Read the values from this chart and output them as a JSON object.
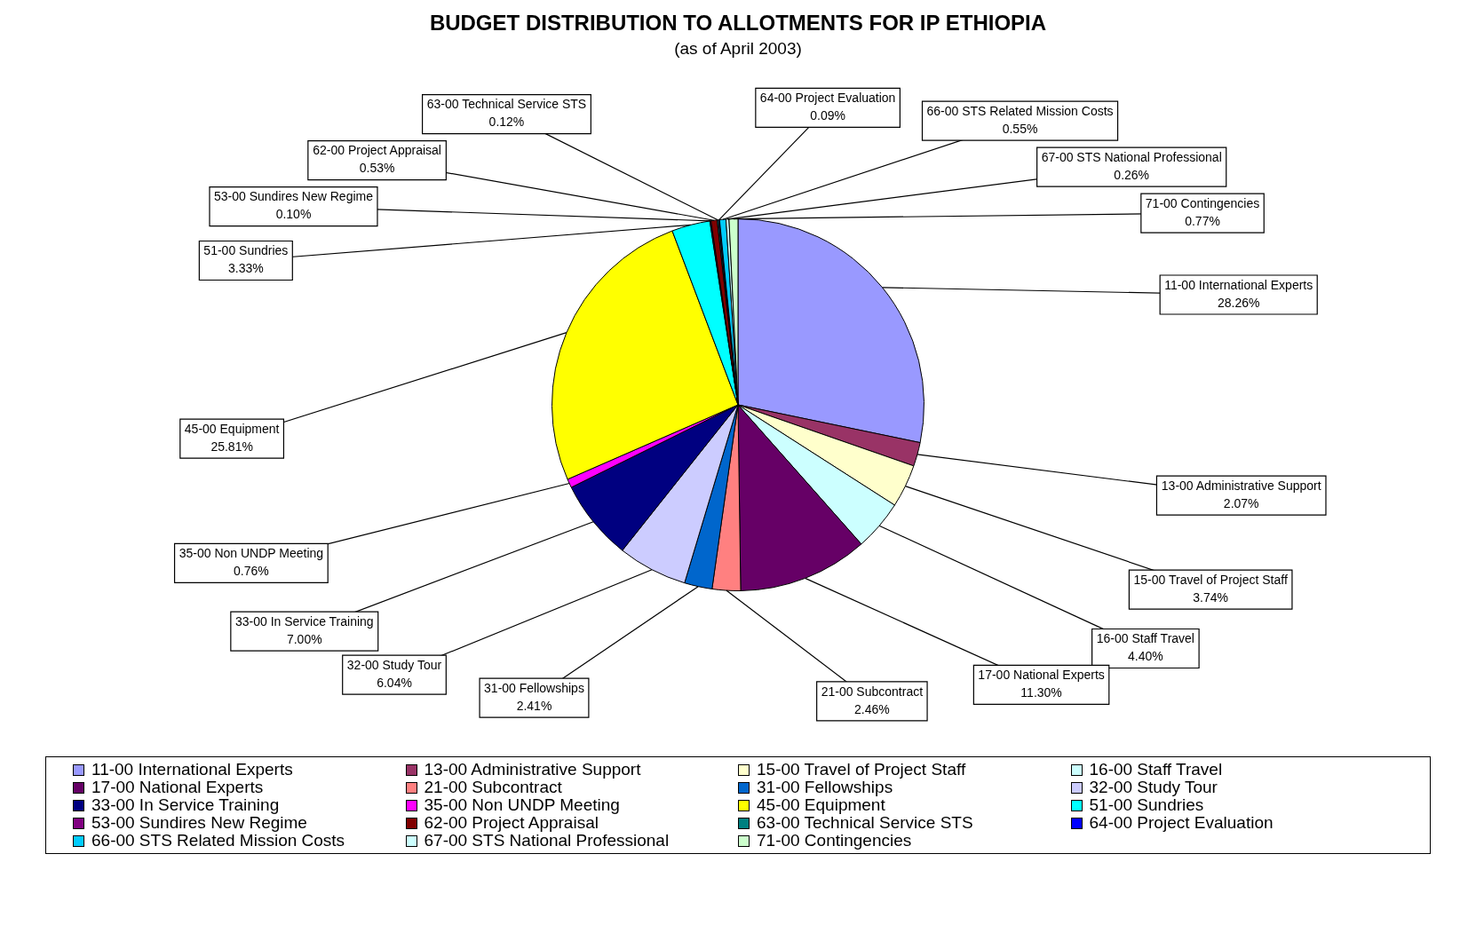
{
  "chart_data": {
    "type": "pie",
    "title": "BUDGET DISTRIBUTION TO ALLOTMENTS FOR IP ETHIOPIA",
    "subtitle": "(as of April 2003)",
    "categories": [
      "11-00 International Experts",
      "13-00 Administrative Support",
      "15-00 Travel of Project Staff",
      "16-00 Staff Travel",
      "17-00 National Experts",
      "21-00 Subcontract",
      "31-00 Fellowships",
      "32-00 Study Tour",
      "33-00 In Service Training",
      "35-00 Non UNDP Meeting",
      "45-00 Equipment",
      "51-00 Sundries",
      "53-00 Sundires New Regime",
      "62-00 Project Appraisal",
      "63-00 Technical Service STS",
      "64-00 Project Evaluation",
      "66-00 STS Related Mission Costs",
      "67-00 STS National Professional",
      "71-00 Contingencies"
    ],
    "values": [
      28.26,
      2.07,
      3.74,
      4.4,
      11.3,
      2.46,
      2.41,
      6.04,
      7.0,
      0.76,
      25.81,
      3.33,
      0.1,
      0.53,
      0.12,
      0.09,
      0.55,
      0.26,
      0.77
    ],
    "value_labels": [
      "28.26%",
      "2.07%",
      "3.74%",
      "4.40%",
      "11.30%",
      "2.46%",
      "2.41%",
      "6.04%",
      "7.00%",
      "0.76%",
      "25.81%",
      "3.33%",
      "0.10%",
      "0.53%",
      "0.12%",
      "0.09%",
      "0.55%",
      "0.26%",
      "0.77%"
    ],
    "colors": [
      "#9999ff",
      "#993366",
      "#ffffcc",
      "#ccffff",
      "#660066",
      "#ff8080",
      "#0066cc",
      "#ccccff",
      "#000080",
      "#ff00ff",
      "#ffff00",
      "#00ffff",
      "#800080",
      "#800000",
      "#008080",
      "#0000ff",
      "#00ccff",
      "#ccffff",
      "#ccffcc"
    ],
    "legend": "bottom"
  }
}
